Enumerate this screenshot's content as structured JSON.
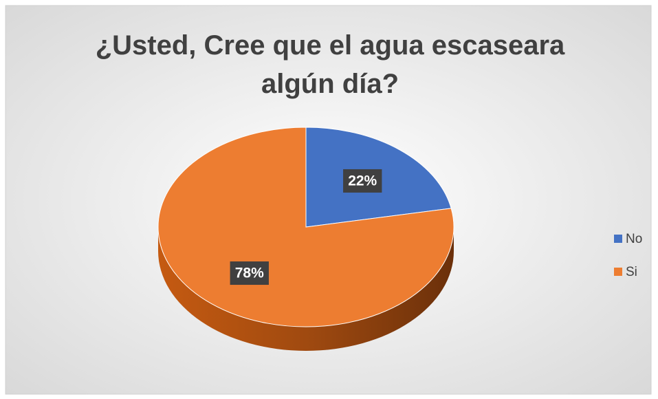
{
  "chart_data": {
    "type": "pie",
    "title": "¿Usted, Cree que el agua escaseara algún día?",
    "categories": [
      "No",
      "Si"
    ],
    "values": [
      22,
      78
    ],
    "value_labels": [
      "22%",
      "78%"
    ],
    "colors": [
      "#4472c4",
      "#ed7d31"
    ],
    "legend": "right"
  }
}
